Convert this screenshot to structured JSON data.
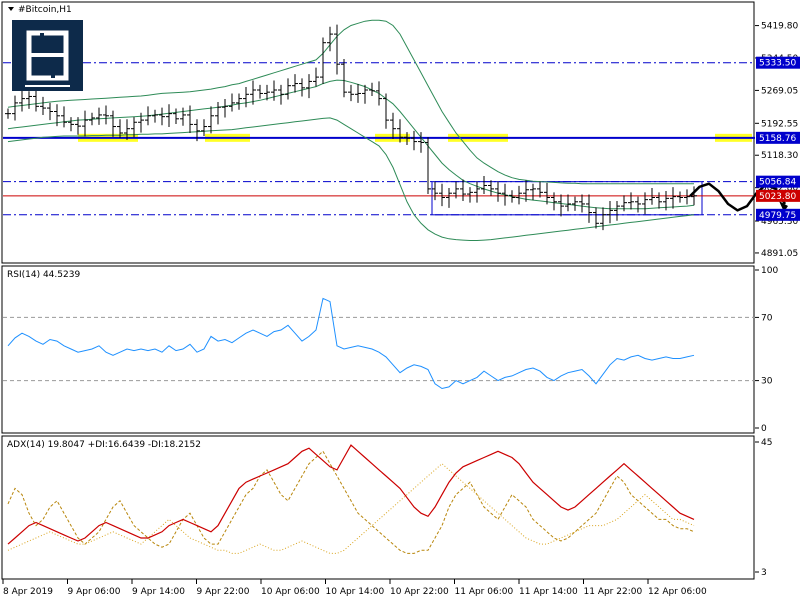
{
  "window": {
    "symbol_title": "#Bitcoin,H1",
    "logo_icon": "broker-logo-icon"
  },
  "colors": {
    "background": "#ffffff",
    "frame": "#000000",
    "candle": "#000000",
    "bollinger": "#2e8b57",
    "rsi": "#1e90ff",
    "adx_main": "#cc0000",
    "plus_di": "#b8860b",
    "minus_di": "#daa520",
    "support_line": "#0000cc",
    "current_price": "#cc0000",
    "highlight": "#ffff00",
    "label_blue": "#0000cc",
    "label_red": "#cc0000"
  },
  "chart_data": [
    {
      "type": "candlestick",
      "title": "#Bitcoin,H1",
      "ylim": [
        4870,
        5470
      ],
      "y_ticks": [
        "5419.80",
        "5344.50",
        "5269.05",
        "5192.55",
        "5118.30",
        "5042.80",
        "4965.30",
        "4891.05"
      ],
      "x_ticks": [
        "8 Apr 2019",
        "9 Apr 06:00",
        "9 Apr 14:00",
        "9 Apr 22:00",
        "10 Apr 06:00",
        "10 Apr 14:00",
        "10 Apr 22:00",
        "11 Apr 06:00",
        "11 Apr 14:00",
        "11 Apr 22:00",
        "12 Apr 06:00"
      ],
      "horizontal_levels": [
        {
          "value": 5333.5,
          "label": "5333.50",
          "style": "dash-dot",
          "color": "#0000cc"
        },
        {
          "value": 5158.76,
          "label": "5158.76",
          "style": "solid",
          "color": "#0000cc"
        },
        {
          "value": 5056.84,
          "label": "5056.84",
          "style": "dash-dot",
          "color": "#0000cc"
        },
        {
          "value": 5023.8,
          "label": "5023.80",
          "style": "solid",
          "color": "#cc0000"
        },
        {
          "value": 4979.75,
          "label": "4979.75",
          "style": "dash-dot",
          "color": "#0000cc"
        }
      ],
      "range_box": {
        "from_index": 60,
        "to_index": 98,
        "top": 5056.84,
        "bottom": 4979.75
      },
      "close_series": [
        5215,
        5240,
        5250,
        5255,
        5232,
        5228,
        5220,
        5210,
        5195,
        5190,
        5186,
        5200,
        5205,
        5212,
        5210,
        5185,
        5170,
        5180,
        5195,
        5200,
        5210,
        5212,
        5208,
        5215,
        5203,
        5212,
        5190,
        5175,
        5185,
        5210,
        5230,
        5232,
        5240,
        5250,
        5260,
        5270,
        5262,
        5265,
        5270,
        5260,
        5280,
        5285,
        5275,
        5290,
        5300,
        5380,
        5400,
        5330,
        5265,
        5260,
        5262,
        5270,
        5268,
        5250,
        5200,
        5180,
        5160,
        5158,
        5150,
        5148,
        5040,
        5030,
        5020,
        5030,
        5040,
        5028,
        5032,
        5040,
        5048,
        5040,
        5030,
        5025,
        5020,
        5030,
        5038,
        5040,
        5032,
        5020,
        5010,
        5000,
        5005,
        5010,
        5005,
        4985,
        4960,
        4980,
        4990,
        5000,
        5008,
        5010,
        5005,
        5015,
        5020,
        5010,
        5018,
        5022,
        5020,
        5022,
        5024
      ],
      "bollinger_upper": [
        5230,
        5232,
        5234,
        5236,
        5238,
        5240,
        5242,
        5244,
        5245,
        5246,
        5247,
        5248,
        5249,
        5250,
        5251,
        5252,
        5253,
        5254,
        5255,
        5256,
        5258,
        5260,
        5262,
        5263,
        5264,
        5265,
        5266,
        5268,
        5270,
        5272,
        5275,
        5278,
        5282,
        5285,
        5290,
        5295,
        5300,
        5305,
        5310,
        5315,
        5320,
        5325,
        5330,
        5335,
        5340,
        5355,
        5375,
        5395,
        5410,
        5420,
        5425,
        5430,
        5432,
        5432,
        5430,
        5420,
        5400,
        5370,
        5340,
        5310,
        5280,
        5250,
        5220,
        5195,
        5170,
        5150,
        5130,
        5112,
        5100,
        5090,
        5080,
        5072,
        5066,
        5062,
        5060,
        5058,
        5057,
        5056,
        5055,
        5054,
        5053,
        5053,
        5052,
        5052,
        5052,
        5052,
        5052,
        5052,
        5052,
        5052,
        5052,
        5052,
        5052,
        5052,
        5052,
        5052,
        5052,
        5052,
        5052
      ],
      "bollinger_middle": [
        5180,
        5182,
        5184,
        5186,
        5188,
        5190,
        5192,
        5194,
        5196,
        5198,
        5200,
        5201,
        5202,
        5203,
        5204,
        5205,
        5206,
        5207,
        5208,
        5209,
        5210,
        5212,
        5214,
        5216,
        5218,
        5220,
        5222,
        5224,
        5226,
        5228,
        5230,
        5232,
        5235,
        5238,
        5240,
        5243,
        5246,
        5250,
        5254,
        5258,
        5262,
        5266,
        5270,
        5274,
        5278,
        5285,
        5290,
        5293,
        5292,
        5288,
        5283,
        5278,
        5270,
        5262,
        5250,
        5238,
        5220,
        5200,
        5180,
        5160,
        5140,
        5120,
        5100,
        5085,
        5072,
        5060,
        5052,
        5046,
        5040,
        5035,
        5030,
        5026,
        5022,
        5019,
        5016,
        5014,
        5012,
        5010,
        5008,
        5006,
        5004,
        5002,
        5000,
        4998,
        4996,
        4995,
        4994,
        4994,
        4994,
        4994,
        4994,
        4994,
        4995,
        4996,
        4997,
        4998,
        4999,
        5000,
        5002
      ],
      "bollinger_lower": [
        5150,
        5152,
        5154,
        5156,
        5158,
        5160,
        5161,
        5162,
        5163,
        5163,
        5163,
        5163,
        5164,
        5164,
        5165,
        5165,
        5165,
        5166,
        5166,
        5167,
        5167,
        5168,
        5168,
        5169,
        5170,
        5171,
        5172,
        5173,
        5174,
        5175,
        5176,
        5177,
        5178,
        5180,
        5182,
        5184,
        5186,
        5188,
        5190,
        5192,
        5194,
        5196,
        5198,
        5200,
        5202,
        5204,
        5205,
        5200,
        5190,
        5180,
        5170,
        5160,
        5150,
        5140,
        5120,
        5090,
        5050,
        5010,
        4980,
        4960,
        4945,
        4935,
        4928,
        4924,
        4922,
        4921,
        4920,
        4920,
        4921,
        4922,
        4924,
        4926,
        4928,
        4930,
        4932,
        4934,
        4936,
        4938,
        4940,
        4942,
        4944,
        4946,
        4948,
        4950,
        4952,
        4954,
        4956,
        4958,
        4960,
        4962,
        4964,
        4966,
        4968,
        4970,
        4972,
        4974,
        4976,
        4978,
        4980
      ],
      "projection": [
        5023,
        5045,
        5052,
        5035,
        5005,
        4990,
        5000,
        5030,
        5050,
        5040,
        5005
      ]
    },
    {
      "type": "line",
      "title": "RSI(14) 44.5239",
      "ylim": [
        0,
        100
      ],
      "y_ticks": [
        "100",
        "70",
        "30",
        "0"
      ],
      "levels": [
        70,
        30
      ],
      "series": [
        {
          "name": "RSI(14)",
          "values": [
            52,
            57,
            60,
            58,
            55,
            53,
            56,
            55,
            52,
            50,
            48,
            49,
            50,
            52,
            48,
            46,
            48,
            50,
            49,
            50,
            49,
            50,
            48,
            52,
            49,
            50,
            53,
            48,
            50,
            58,
            55,
            56,
            54,
            57,
            60,
            62,
            60,
            58,
            61,
            62,
            65,
            60,
            55,
            58,
            62,
            82,
            80,
            52,
            50,
            51,
            52,
            51,
            50,
            48,
            45,
            40,
            35,
            38,
            40,
            39,
            37,
            28,
            25,
            26,
            30,
            28,
            30,
            32,
            36,
            33,
            30,
            32,
            33,
            35,
            37,
            38,
            36,
            32,
            30,
            33,
            35,
            36,
            37,
            33,
            28,
            34,
            40,
            44,
            43,
            45,
            46,
            44,
            43,
            44,
            45,
            44,
            44,
            45,
            46
          ]
        }
      ]
    },
    {
      "type": "line",
      "title": "ADX(14) 19.8047 +DI:16.6439 -DI:18.2152",
      "ylim": [
        3,
        45
      ],
      "y_ticks": [
        "45",
        "3"
      ],
      "series": [
        {
          "name": "ADX(14)",
          "values": [
            12,
            14,
            16,
            18,
            19,
            18,
            17,
            16,
            15,
            14,
            13,
            14,
            16,
            18,
            19,
            18,
            17,
            16,
            15,
            14,
            14,
            15,
            16,
            18,
            19,
            20,
            19,
            18,
            17,
            16,
            18,
            22,
            26,
            30,
            32,
            33,
            34,
            35,
            36,
            37,
            38,
            40,
            42,
            43,
            41,
            39,
            37,
            36,
            40,
            44,
            42,
            40,
            38,
            36,
            34,
            32,
            30,
            27,
            24,
            22,
            21,
            24,
            28,
            32,
            35,
            37,
            38,
            39,
            40,
            41,
            42,
            41,
            40,
            38,
            35,
            32,
            30,
            28,
            26,
            24,
            23,
            24,
            26,
            28,
            30,
            32,
            34,
            36,
            38,
            36,
            34,
            32,
            30,
            28,
            26,
            24,
            22,
            21,
            20
          ]
        },
        {
          "name": "+DI",
          "values": [
            25,
            30,
            28,
            22,
            18,
            20,
            24,
            26,
            22,
            18,
            14,
            12,
            14,
            16,
            20,
            24,
            26,
            22,
            18,
            16,
            14,
            12,
            11,
            12,
            16,
            20,
            22,
            18,
            14,
            12,
            12,
            16,
            20,
            24,
            28,
            30,
            34,
            36,
            32,
            28,
            26,
            30,
            34,
            38,
            40,
            42,
            38,
            34,
            30,
            26,
            22,
            20,
            18,
            16,
            14,
            12,
            10,
            9,
            9,
            10,
            10,
            14,
            18,
            24,
            28,
            30,
            32,
            28,
            24,
            22,
            20,
            24,
            28,
            26,
            24,
            20,
            18,
            16,
            14,
            13,
            14,
            16,
            18,
            20,
            22,
            26,
            30,
            34,
            32,
            28,
            26,
            24,
            22,
            20,
            20,
            18,
            17,
            17,
            16
          ]
        },
        {
          "name": "-DI",
          "values": [
            10,
            11,
            12,
            13,
            14,
            15,
            16,
            15,
            14,
            13,
            12,
            12,
            13,
            14,
            15,
            16,
            15,
            14,
            13,
            12,
            14,
            16,
            18,
            20,
            18,
            16,
            14,
            13,
            12,
            11,
            10,
            10,
            9,
            9,
            10,
            11,
            12,
            11,
            10,
            10,
            11,
            12,
            13,
            12,
            11,
            10,
            9,
            9,
            10,
            12,
            14,
            16,
            18,
            20,
            22,
            24,
            26,
            28,
            30,
            32,
            34,
            36,
            38,
            36,
            34,
            32,
            30,
            28,
            26,
            24,
            22,
            20,
            18,
            16,
            14,
            13,
            12,
            12,
            13,
            14,
            15,
            16,
            17,
            18,
            18,
            18,
            19,
            20,
            22,
            24,
            26,
            28,
            26,
            24,
            22,
            20,
            20,
            19,
            18
          ]
        }
      ]
    }
  ]
}
